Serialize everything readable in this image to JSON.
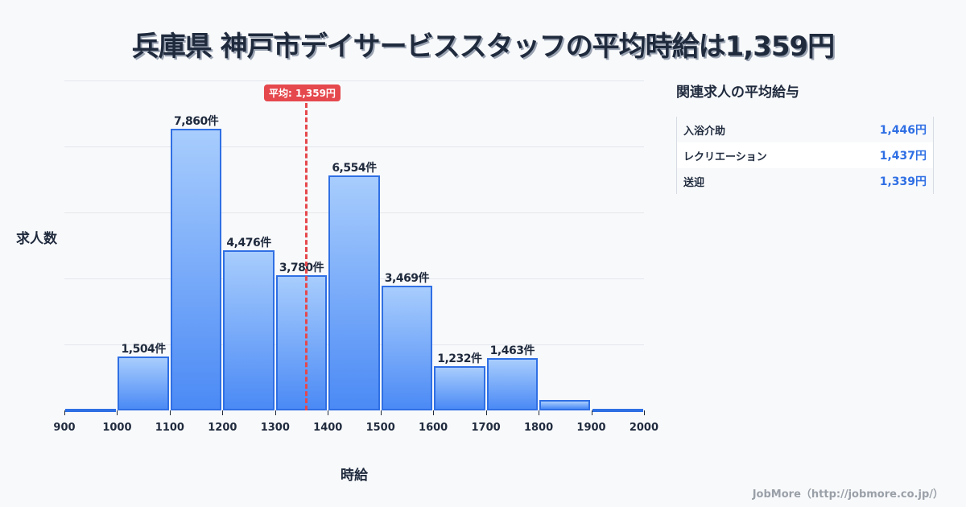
{
  "title": "兵庫県 神戸市デイサービススタッフの平均時給は1,359円",
  "average_badge": "平均: 1,359円",
  "y_axis_label": "求人数",
  "x_axis_label": "時給",
  "bar_unit": "件",
  "side_panel": {
    "title": "関連求人の平均給与",
    "rows": [
      {
        "name": "入浴介助",
        "value": "1,446円"
      },
      {
        "name": "レクリエーション",
        "value": "1,437円"
      },
      {
        "name": "送迎",
        "value": "1,339円"
      }
    ]
  },
  "footer": "JobMore（http://jobmore.co.jp/）",
  "colors": {
    "bar": "#4b8af5",
    "bar_border": "#2f6fe4",
    "average_line": "#e5484d",
    "value_text": "#2f6fe4"
  },
  "chart_data": {
    "type": "bar",
    "title": "兵庫県 神戸市デイサービススタッフの平均時給は1,359円",
    "xlabel": "時給",
    "ylabel": "求人数",
    "categories": [
      "900-1000",
      "1000-1100",
      "1100-1200",
      "1200-1300",
      "1300-1400",
      "1400-1500",
      "1500-1600",
      "1600-1700",
      "1700-1800",
      "1800-1900",
      "1900-2000"
    ],
    "values": [
      50,
      1504,
      7860,
      4476,
      3780,
      6554,
      3469,
      1232,
      1463,
      300,
      50
    ],
    "labels": [
      "",
      "1,504件",
      "7,860件",
      "4,476件",
      "3,780件",
      "6,554件",
      "3,469件",
      "1,232件",
      "1,463件",
      "",
      ""
    ],
    "x_ticks": [
      "900",
      "1000",
      "1100",
      "1200",
      "1300",
      "1400",
      "1500",
      "1600",
      "1700",
      "1800",
      "1900",
      "2000"
    ],
    "average": 1359,
    "average_label": "平均: 1,359円",
    "ylim": [
      0,
      9200
    ],
    "grid": true
  }
}
